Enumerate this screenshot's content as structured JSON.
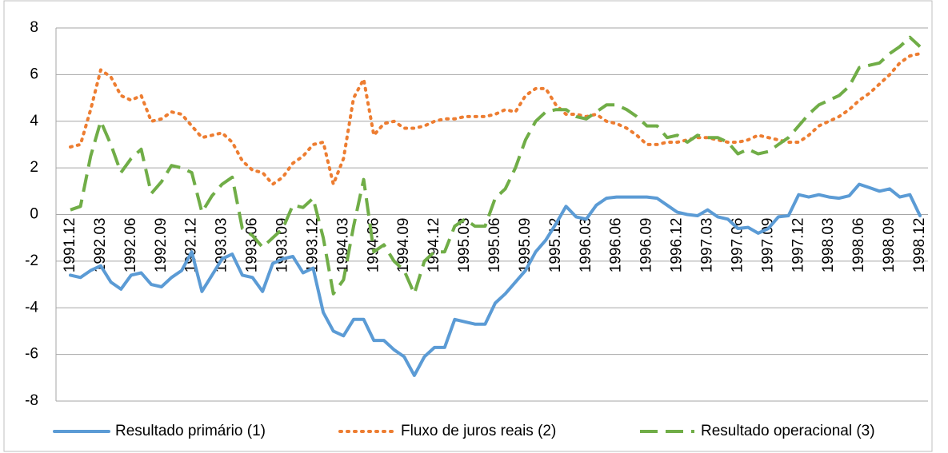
{
  "chart_data": {
    "type": "line",
    "categories": [
      "1991.12",
      null,
      null,
      "1992.03",
      null,
      null,
      "1992.06",
      null,
      null,
      "1992.09",
      null,
      null,
      "1992.12",
      null,
      null,
      "1993.03",
      null,
      null,
      "1993.06",
      null,
      null,
      "1993.09",
      null,
      null,
      "1993.12",
      null,
      null,
      "1994.03",
      null,
      null,
      "1994.06",
      null,
      null,
      "1994.09",
      null,
      null,
      "1994.12",
      null,
      null,
      "1995.03",
      null,
      null,
      "1995.06",
      null,
      null,
      "1995.09",
      null,
      null,
      "1995.12",
      null,
      null,
      "1996.03",
      null,
      null,
      "1996.06",
      null,
      null,
      "1996.09",
      null,
      null,
      "1996.12",
      null,
      null,
      "1997.03",
      null,
      null,
      "1997.06",
      null,
      null,
      "1997.09",
      null,
      null,
      "1997.12",
      null,
      null,
      "1998.03",
      null,
      null,
      "1998.06",
      null,
      null,
      "1998.09",
      null,
      null,
      "1998.12"
    ],
    "series": [
      {
        "name": "Resultado primário (1)",
        "color": "#5b9bd5",
        "dash": "solid",
        "values": [
          -2.6,
          -2.7,
          -2.4,
          -2.2,
          -2.9,
          -3.2,
          -2.6,
          -2.5,
          -3.0,
          -3.1,
          -2.7,
          -2.4,
          -1.6,
          -3.3,
          -2.6,
          -1.9,
          -1.7,
          -2.6,
          -2.7,
          -3.3,
          -2.1,
          -1.9,
          -1.8,
          -2.5,
          -2.3,
          -4.2,
          -5.0,
          -5.2,
          -4.5,
          -4.5,
          -5.4,
          -5.4,
          -5.8,
          -6.1,
          -6.9,
          -6.1,
          -5.7,
          -5.7,
          -4.5,
          -4.6,
          -4.7,
          -4.7,
          -3.8,
          -3.4,
          -2.9,
          -2.4,
          -1.6,
          -1.1,
          -0.4,
          0.35,
          -0.1,
          -0.2,
          0.4,
          0.7,
          0.75,
          0.75,
          0.75,
          0.75,
          0.7,
          0.4,
          0.1,
          0.0,
          -0.05,
          0.2,
          -0.1,
          -0.2,
          -0.6,
          -0.55,
          -0.8,
          -0.6,
          -0.1,
          -0.05,
          0.85,
          0.75,
          0.85,
          0.75,
          0.7,
          0.8,
          1.3,
          1.15,
          1.0,
          1.1,
          0.75,
          0.85,
          -0.05
        ]
      },
      {
        "name": "Fluxo de juros reais (2)",
        "color": "#ed7d31",
        "dash": "dotted",
        "values": [
          2.9,
          3.0,
          4.5,
          6.2,
          5.9,
          5.1,
          4.9,
          5.1,
          4.0,
          4.1,
          4.4,
          4.3,
          3.8,
          3.3,
          3.4,
          3.5,
          3.1,
          2.3,
          1.9,
          1.8,
          1.3,
          1.6,
          2.2,
          2.5,
          3.0,
          3.1,
          1.3,
          2.4,
          5.0,
          5.8,
          3.4,
          3.9,
          4.0,
          3.7,
          3.7,
          3.8,
          4.0,
          4.1,
          4.1,
          4.2,
          4.2,
          4.2,
          4.3,
          4.5,
          4.4,
          5.1,
          5.4,
          5.4,
          4.7,
          4.3,
          4.3,
          4.2,
          4.3,
          4.0,
          3.9,
          3.7,
          3.4,
          3.0,
          3.0,
          3.1,
          3.1,
          3.2,
          3.3,
          3.3,
          3.2,
          3.1,
          3.1,
          3.2,
          3.4,
          3.3,
          3.2,
          3.1,
          3.1,
          3.4,
          3.8,
          4.0,
          4.2,
          4.5,
          4.9,
          5.2,
          5.6,
          6.0,
          6.5,
          6.8,
          6.9
        ]
      },
      {
        "name": "Resultado operacional (3)",
        "color": "#70ad47",
        "dash": "dashed",
        "values": [
          0.2,
          0.35,
          2.5,
          4.0,
          3.0,
          1.8,
          2.4,
          2.8,
          0.9,
          1.4,
          2.1,
          2.0,
          1.8,
          0.1,
          0.8,
          1.3,
          1.6,
          -0.6,
          -0.9,
          -1.4,
          -1.0,
          -0.6,
          0.4,
          0.3,
          0.7,
          -1.0,
          -3.4,
          -2.8,
          -0.5,
          1.5,
          -1.6,
          -1.3,
          -2.0,
          -2.4,
          -3.4,
          -2.0,
          -1.6,
          -1.6,
          -0.5,
          -0.2,
          -0.5,
          -0.5,
          0.7,
          1.1,
          2.0,
          3.2,
          4.0,
          4.4,
          4.5,
          4.5,
          4.2,
          4.1,
          4.4,
          4.7,
          4.7,
          4.5,
          4.2,
          3.8,
          3.8,
          3.3,
          3.4,
          3.1,
          3.4,
          3.3,
          3.3,
          3.1,
          2.6,
          2.8,
          2.6,
          2.7,
          3.0,
          3.3,
          3.8,
          4.3,
          4.7,
          4.9,
          5.1,
          5.5,
          6.3,
          6.4,
          6.5,
          6.9,
          7.2,
          7.6,
          7.2
        ]
      }
    ],
    "ylim": [
      -8,
      8
    ],
    "yticks": [
      -8,
      -6,
      -4,
      -2,
      0,
      2,
      4,
      6,
      8
    ],
    "grid": true,
    "legend": "bottom"
  }
}
